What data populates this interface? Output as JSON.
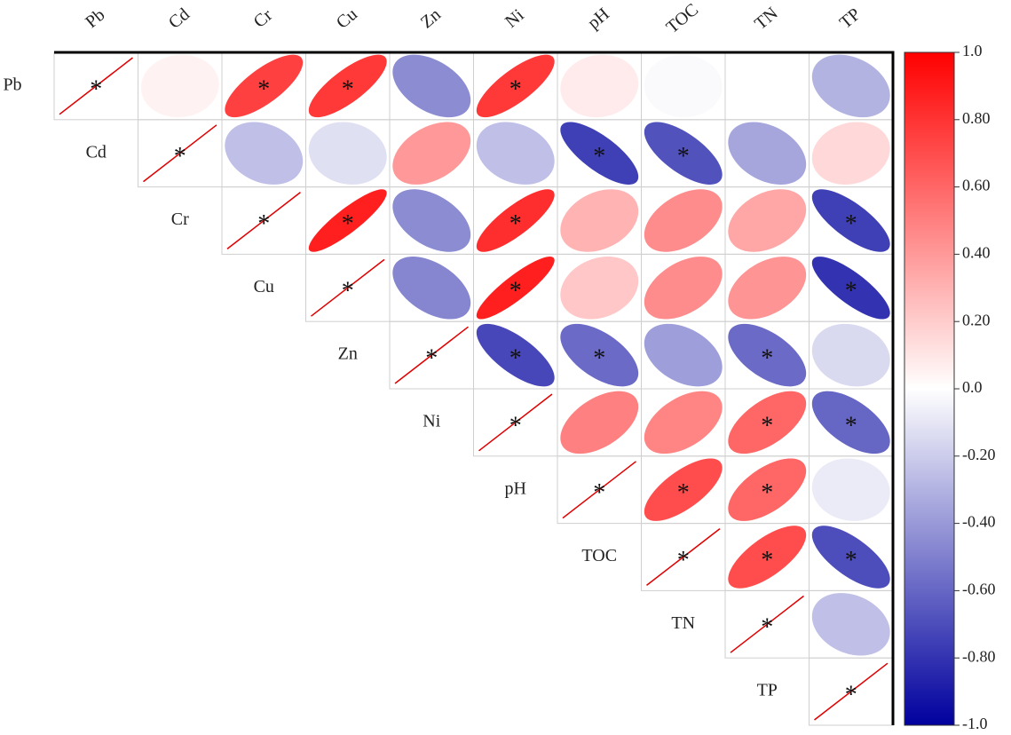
{
  "chart_data": {
    "type": "correlation-ellipse",
    "variables": [
      "Pb",
      "Cd",
      "Cr",
      "Cu",
      "Zn",
      "Ni",
      "pH",
      "TOC",
      "TN",
      "TP"
    ],
    "matrix": [
      [
        1,
        0.05,
        0.75,
        0.78,
        -0.45,
        0.78,
        0.08,
        -0.02,
        0.0,
        -0.3
      ],
      [
        null,
        1,
        -0.25,
        -0.12,
        0.4,
        -0.25,
        -0.75,
        -0.68,
        -0.35,
        0.15
      ],
      [
        null,
        null,
        1,
        0.88,
        -0.45,
        0.82,
        0.3,
        0.45,
        0.35,
        -0.75
      ],
      [
        null,
        null,
        null,
        1,
        -0.48,
        0.88,
        0.22,
        0.45,
        0.42,
        -0.8
      ],
      [
        null,
        null,
        null,
        null,
        1,
        -0.72,
        -0.58,
        -0.38,
        -0.58,
        -0.15
      ],
      [
        null,
        null,
        null,
        null,
        null,
        1,
        0.5,
        0.48,
        0.6,
        -0.6
      ],
      [
        null,
        null,
        null,
        null,
        null,
        null,
        1,
        0.7,
        0.6,
        -0.08
      ],
      [
        null,
        null,
        null,
        null,
        null,
        null,
        null,
        1,
        0.7,
        -0.7
      ],
      [
        null,
        null,
        null,
        null,
        null,
        null,
        null,
        null,
        1,
        -0.25
      ],
      [
        null,
        null,
        null,
        null,
        null,
        null,
        null,
        null,
        null,
        1
      ]
    ],
    "significant": [
      [
        true,
        false,
        true,
        true,
        false,
        true,
        false,
        false,
        false,
        false
      ],
      [
        null,
        true,
        false,
        false,
        false,
        false,
        true,
        true,
        false,
        false
      ],
      [
        null,
        null,
        true,
        true,
        false,
        true,
        false,
        false,
        false,
        true
      ],
      [
        null,
        null,
        null,
        true,
        false,
        true,
        false,
        false,
        false,
        true
      ],
      [
        null,
        null,
        null,
        null,
        true,
        true,
        true,
        false,
        true,
        false
      ],
      [
        null,
        null,
        null,
        null,
        null,
        true,
        false,
        false,
        true,
        true
      ],
      [
        null,
        null,
        null,
        null,
        null,
        null,
        true,
        true,
        true,
        false
      ],
      [
        null,
        null,
        null,
        null,
        null,
        null,
        null,
        true,
        true,
        true
      ],
      [
        null,
        null,
        null,
        null,
        null,
        null,
        null,
        null,
        true,
        false
      ],
      [
        null,
        null,
        null,
        null,
        null,
        null,
        null,
        null,
        null,
        true
      ]
    ],
    "significance_mark": "*",
    "colormap": [
      "#00009e",
      "#ffffff",
      "#ff0000"
    ],
    "clim": [
      -1,
      1
    ],
    "cticks": [
      {
        "value": 1,
        "label": "1.0"
      },
      {
        "value": 0.8,
        "label": "0.80"
      },
      {
        "value": 0.6,
        "label": "0.60"
      },
      {
        "value": 0.4,
        "label": "0.40"
      },
      {
        "value": 0.2,
        "label": "0.20"
      },
      {
        "value": 0,
        "label": "0.0"
      },
      {
        "value": -0.2,
        "label": "-0.20"
      },
      {
        "value": -0.4,
        "label": "-0.40"
      },
      {
        "value": -0.6,
        "label": "-0.60"
      },
      {
        "value": -0.8,
        "label": "-0.80"
      },
      {
        "value": -1,
        "label": "-1.0"
      }
    ]
  }
}
